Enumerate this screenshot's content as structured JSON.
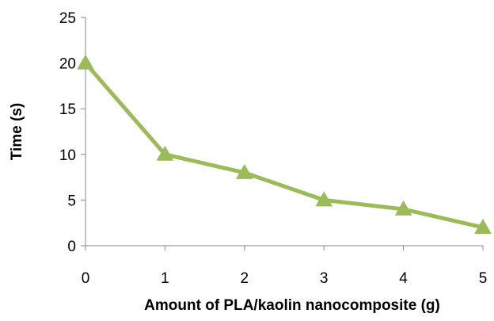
{
  "chart_data": {
    "type": "line",
    "title": "",
    "xlabel": "Amount of PLA/kaolin nanocomposite (g)",
    "ylabel": "Time (s)",
    "x": [
      0,
      1,
      2,
      3,
      4,
      5
    ],
    "x_ticks": [
      "0",
      "1",
      "2",
      "3",
      "4",
      "5"
    ],
    "y_ticks": [
      "0",
      "5",
      "10",
      "15",
      "20",
      "25"
    ],
    "xlim": [
      0,
      5
    ],
    "ylim": [
      0,
      25
    ],
    "grid": false,
    "legend": "none",
    "marker": "triangle",
    "series": [
      {
        "values": [
          20,
          10,
          8,
          5,
          4,
          2
        ],
        "color": "#9bbb59"
      }
    ]
  }
}
